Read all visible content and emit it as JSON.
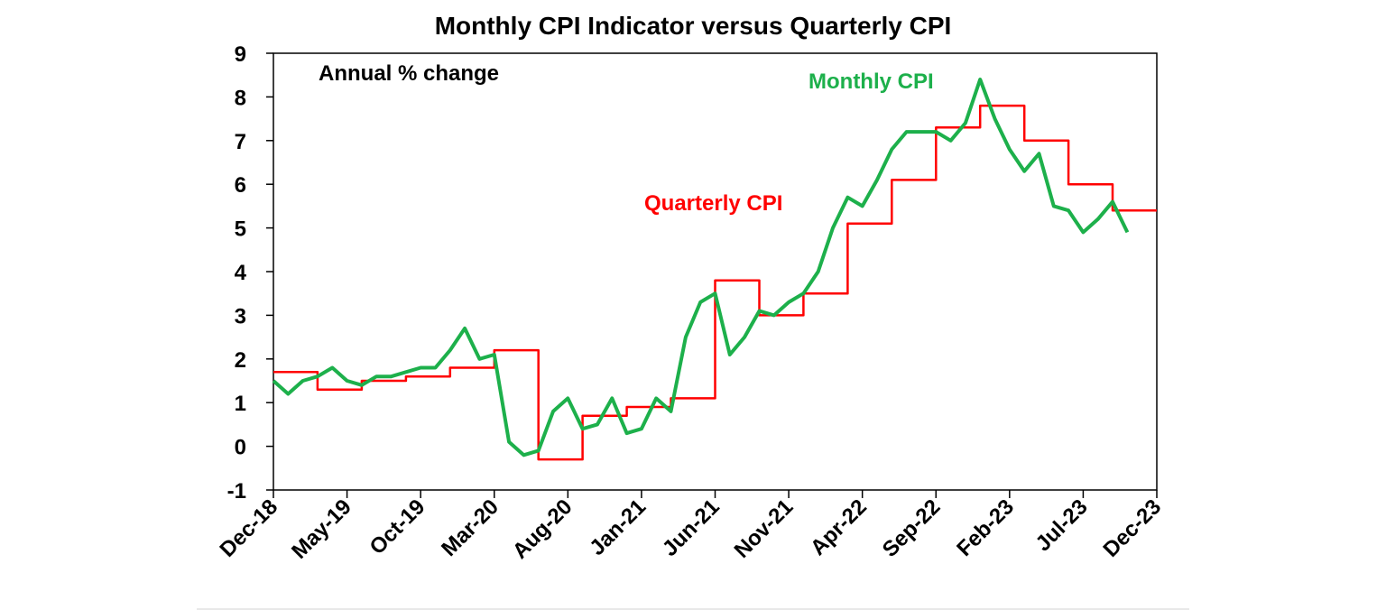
{
  "chart_data": {
    "type": "line",
    "title": "Monthly CPI Indicator versus Quarterly CPI",
    "ylabel_note": "Annual % change",
    "ylim": [
      -1,
      9
    ],
    "yticks": [
      -1,
      0,
      1,
      2,
      3,
      4,
      5,
      6,
      7,
      8,
      9
    ],
    "x_range": [
      "Dec-18",
      "Dec-23"
    ],
    "xtick_labels": [
      "Dec-18",
      "May-19",
      "Oct-19",
      "Mar-20",
      "Aug-20",
      "Jan-21",
      "Jun-21",
      "Nov-21",
      "Apr-22",
      "Sep-22",
      "Feb-23",
      "Jul-23",
      "Dec-23"
    ],
    "grid": false,
    "series": [
      {
        "name": "Monthly CPI",
        "color": "#1DB04B",
        "style": "line",
        "x": [
          "Dec-18",
          "Jan-19",
          "Feb-19",
          "Mar-19",
          "Apr-19",
          "May-19",
          "Jun-19",
          "Jul-19",
          "Aug-19",
          "Sep-19",
          "Oct-19",
          "Nov-19",
          "Dec-19",
          "Jan-20",
          "Feb-20",
          "Mar-20",
          "Apr-20",
          "May-20",
          "Jun-20",
          "Jul-20",
          "Aug-20",
          "Sep-20",
          "Oct-20",
          "Nov-20",
          "Dec-20",
          "Jan-21",
          "Feb-21",
          "Mar-21",
          "Apr-21",
          "May-21",
          "Jun-21",
          "Jul-21",
          "Aug-21",
          "Sep-21",
          "Oct-21",
          "Nov-21",
          "Dec-21",
          "Jan-22",
          "Feb-22",
          "Mar-22",
          "Apr-22",
          "May-22",
          "Jun-22",
          "Jul-22",
          "Aug-22",
          "Sep-22",
          "Oct-22",
          "Nov-22",
          "Dec-22",
          "Jan-23",
          "Feb-23",
          "Mar-23",
          "Apr-23",
          "May-23",
          "Jun-23",
          "Jul-23",
          "Aug-23",
          "Sep-23",
          "Oct-23"
        ],
        "values": [
          1.5,
          1.2,
          1.5,
          1.6,
          1.8,
          1.5,
          1.4,
          1.6,
          1.6,
          1.7,
          1.8,
          1.8,
          2.2,
          2.7,
          2.0,
          2.1,
          0.1,
          -0.2,
          -0.1,
          0.8,
          1.1,
          0.4,
          0.5,
          1.1,
          0.3,
          0.4,
          1.1,
          0.8,
          2.5,
          3.3,
          3.5,
          2.1,
          2.5,
          3.1,
          3.0,
          3.3,
          3.5,
          4.0,
          5.0,
          5.7,
          5.5,
          6.1,
          6.8,
          7.2,
          7.2,
          7.2,
          7.0,
          7.4,
          8.4,
          7.5,
          6.8,
          6.3,
          6.7,
          5.5,
          5.4,
          4.9,
          5.2,
          5.6,
          4.9
        ]
      },
      {
        "name": "Quarterly CPI",
        "color": "#FF0000",
        "style": "step",
        "x": [
          "Dec-18",
          "Mar-19",
          "Jun-19",
          "Sep-19",
          "Dec-19",
          "Mar-20",
          "Jun-20",
          "Sep-20",
          "Dec-20",
          "Mar-21",
          "Jun-21",
          "Sep-21",
          "Dec-21",
          "Mar-22",
          "Jun-22",
          "Sep-22",
          "Dec-22",
          "Mar-23",
          "Jun-23",
          "Sep-23"
        ],
        "values": [
          1.7,
          1.3,
          1.5,
          1.6,
          1.8,
          2.2,
          -0.3,
          0.7,
          0.9,
          1.1,
          3.8,
          3.0,
          3.5,
          5.1,
          6.1,
          7.3,
          7.8,
          7.0,
          6.0,
          5.4
        ]
      }
    ],
    "annotations": [
      {
        "text": "Monthly CPI",
        "color": "#1DB04B"
      },
      {
        "text": "Quarterly CPI",
        "color": "#FF0000"
      }
    ]
  }
}
